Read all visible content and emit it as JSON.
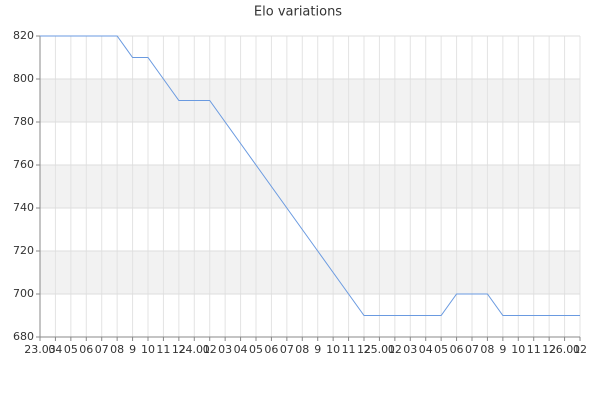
{
  "chart_data": {
    "type": "line",
    "title": "Elo variations",
    "categories": [
      "23.03",
      "04",
      "05",
      "06",
      "07",
      "08",
      "9",
      "10",
      "11",
      "12",
      "24.01",
      "02",
      "03",
      "04",
      "05",
      "06",
      "07",
      "08",
      "9",
      "10",
      "11",
      "12",
      "25.01",
      "02",
      "03",
      "04",
      "05",
      "06",
      "07",
      "08",
      "9",
      "10",
      "11",
      "12",
      "26.01",
      "02"
    ],
    "series": [
      {
        "name": "Elo",
        "color": "#6a9ae0",
        "values": [
          820,
          820,
          820,
          820,
          820,
          820,
          810,
          810,
          800,
          790,
          790,
          790,
          780,
          770,
          760,
          750,
          740,
          730,
          720,
          710,
          700,
          690,
          690,
          690,
          690,
          690,
          690,
          700,
          700,
          700,
          690,
          690,
          690,
          690,
          690,
          690
        ]
      }
    ],
    "ylim": [
      680,
      820
    ],
    "yticks": [
      680,
      700,
      720,
      740,
      760,
      780,
      800,
      820
    ],
    "grid": true
  }
}
